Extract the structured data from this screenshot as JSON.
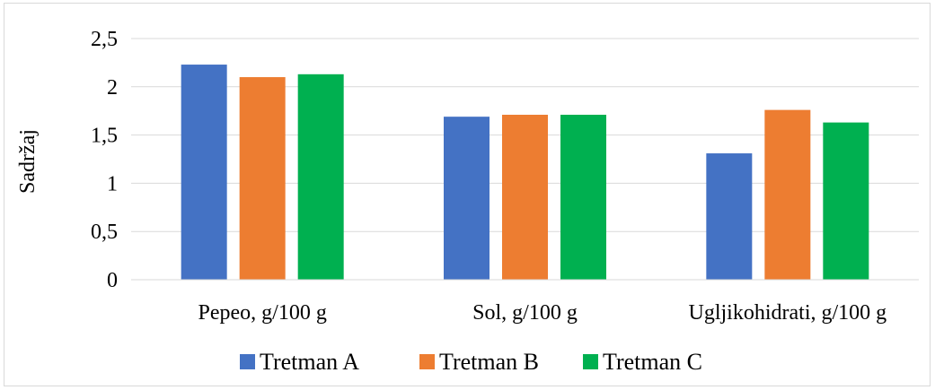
{
  "chart_data": {
    "type": "bar",
    "title": "",
    "xlabel": "",
    "ylabel": "Sadržaj",
    "categories": [
      "Pepeo, g/100 g",
      "Sol, g/100 g",
      "Ugljikohidrati, g/100 g"
    ],
    "series": [
      {
        "name": "Tretman A",
        "color": "#4472C4",
        "values": [
          2.23,
          1.69,
          1.31
        ]
      },
      {
        "name": "Tretman B",
        "color": "#ED7D31",
        "values": [
          2.1,
          1.71,
          1.76
        ]
      },
      {
        "name": "Tretman C",
        "color": "#00B050",
        "values": [
          2.13,
          1.71,
          1.63
        ]
      }
    ],
    "ylim": [
      0,
      2.5
    ],
    "yticks": [
      "0",
      "0,5",
      "1",
      "1,5",
      "2",
      "2,5"
    ],
    "grid": true,
    "legend_position": "bottom"
  }
}
